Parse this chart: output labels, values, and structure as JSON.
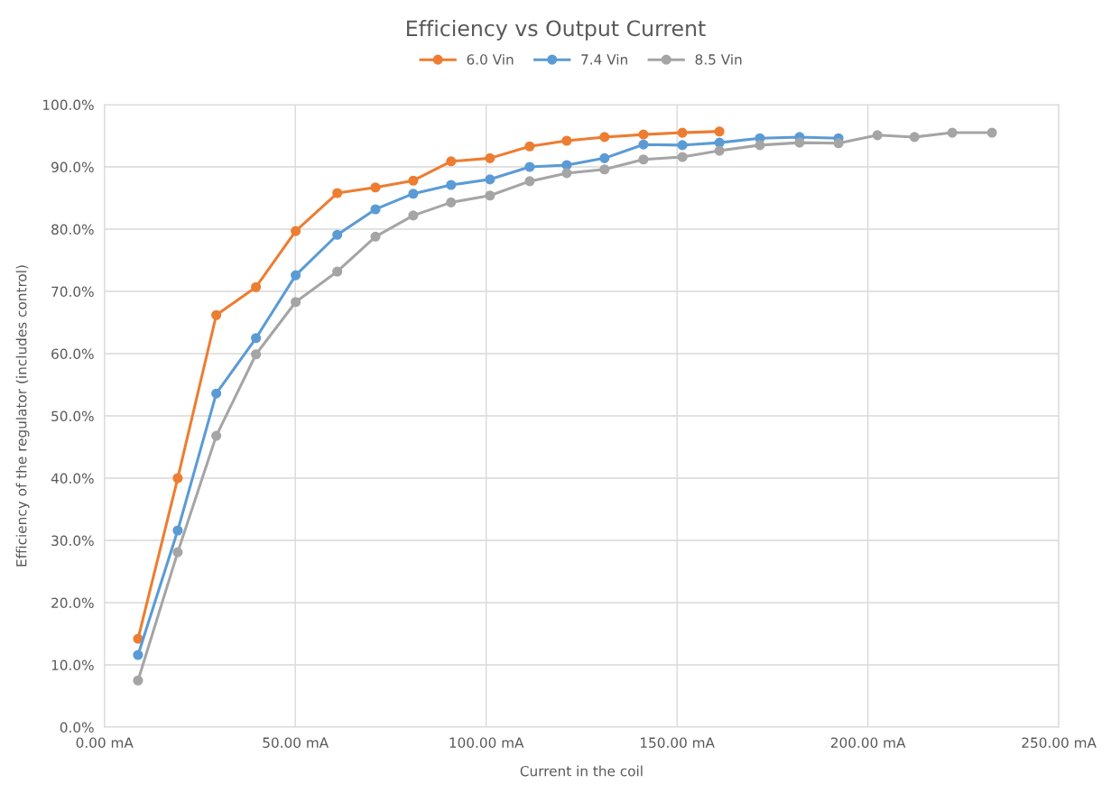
{
  "chart_data": {
    "type": "line",
    "title": "Efficiency vs Output Current",
    "xlabel": "Current in the coil",
    "ylabel": "Efficiency of the regulator (includes control)",
    "xlim": [
      0,
      250
    ],
    "xticks": [
      {
        "value": 0,
        "label": "0.00 mA"
      },
      {
        "value": 50,
        "label": "50.00 mA"
      },
      {
        "value": 100,
        "label": "100.00 mA"
      },
      {
        "value": 150,
        "label": "150.00 mA"
      },
      {
        "value": 200,
        "label": "200.00 mA"
      },
      {
        "value": 250,
        "label": "250.00 mA"
      }
    ],
    "ylim": [
      0,
      100
    ],
    "yticks": [
      {
        "value": 0,
        "label": "0.0%"
      },
      {
        "value": 10,
        "label": "10.0%"
      },
      {
        "value": 20,
        "label": "20.0%"
      },
      {
        "value": 30,
        "label": "30.0%"
      },
      {
        "value": 40,
        "label": "40.0%"
      },
      {
        "value": 50,
        "label": "50.0%"
      },
      {
        "value": 60,
        "label": "60.0%"
      },
      {
        "value": 70,
        "label": "70.0%"
      },
      {
        "value": 80,
        "label": "80.0%"
      },
      {
        "value": 90,
        "label": "90.0%"
      },
      {
        "value": 100,
        "label": "100.0%"
      }
    ],
    "grid": true,
    "legend": "top",
    "marker": "circle",
    "line_style": "solid",
    "series": [
      {
        "name": "6.0 Vin",
        "color": "#ed7d31",
        "x": [
          8.8,
          19.2,
          29.3,
          39.7,
          50.1,
          61.0,
          71.0,
          80.9,
          90.8,
          101.0,
          111.4,
          121.1,
          131.0,
          141.2,
          151.4,
          161.1
        ],
        "values": [
          14.2,
          40.0,
          66.2,
          70.7,
          79.7,
          85.8,
          86.7,
          87.8,
          90.9,
          91.4,
          93.3,
          94.2,
          94.8,
          95.2,
          95.5,
          95.7
        ]
      },
      {
        "name": "7.4 Vin",
        "color": "#5b9bd5",
        "x": [
          8.8,
          19.2,
          29.3,
          39.7,
          50.1,
          61.0,
          71.0,
          80.9,
          90.8,
          101.0,
          111.4,
          121.1,
          131.0,
          141.2,
          151.4,
          161.1,
          171.7,
          182.1,
          192.3
        ],
        "values": [
          11.6,
          31.6,
          53.6,
          62.5,
          72.6,
          79.1,
          83.2,
          85.7,
          87.1,
          88.0,
          90.0,
          90.3,
          91.4,
          93.6,
          93.5,
          93.9,
          94.6,
          94.8,
          94.6
        ]
      },
      {
        "name": "8.5 Vin",
        "color": "#a5a5a5",
        "x": [
          8.8,
          19.2,
          29.3,
          39.7,
          50.1,
          61.0,
          71.0,
          80.9,
          90.8,
          101.0,
          111.4,
          121.1,
          131.0,
          141.2,
          151.4,
          161.1,
          171.7,
          182.1,
          192.3,
          202.5,
          212.2,
          222.1,
          232.5
        ],
        "values": [
          7.5,
          28.1,
          46.8,
          59.9,
          68.3,
          73.2,
          78.8,
          82.2,
          84.3,
          85.4,
          87.7,
          89.0,
          89.6,
          91.2,
          91.6,
          92.6,
          93.5,
          93.9,
          93.8,
          95.1,
          94.8,
          95.5,
          95.5
        ]
      }
    ]
  }
}
